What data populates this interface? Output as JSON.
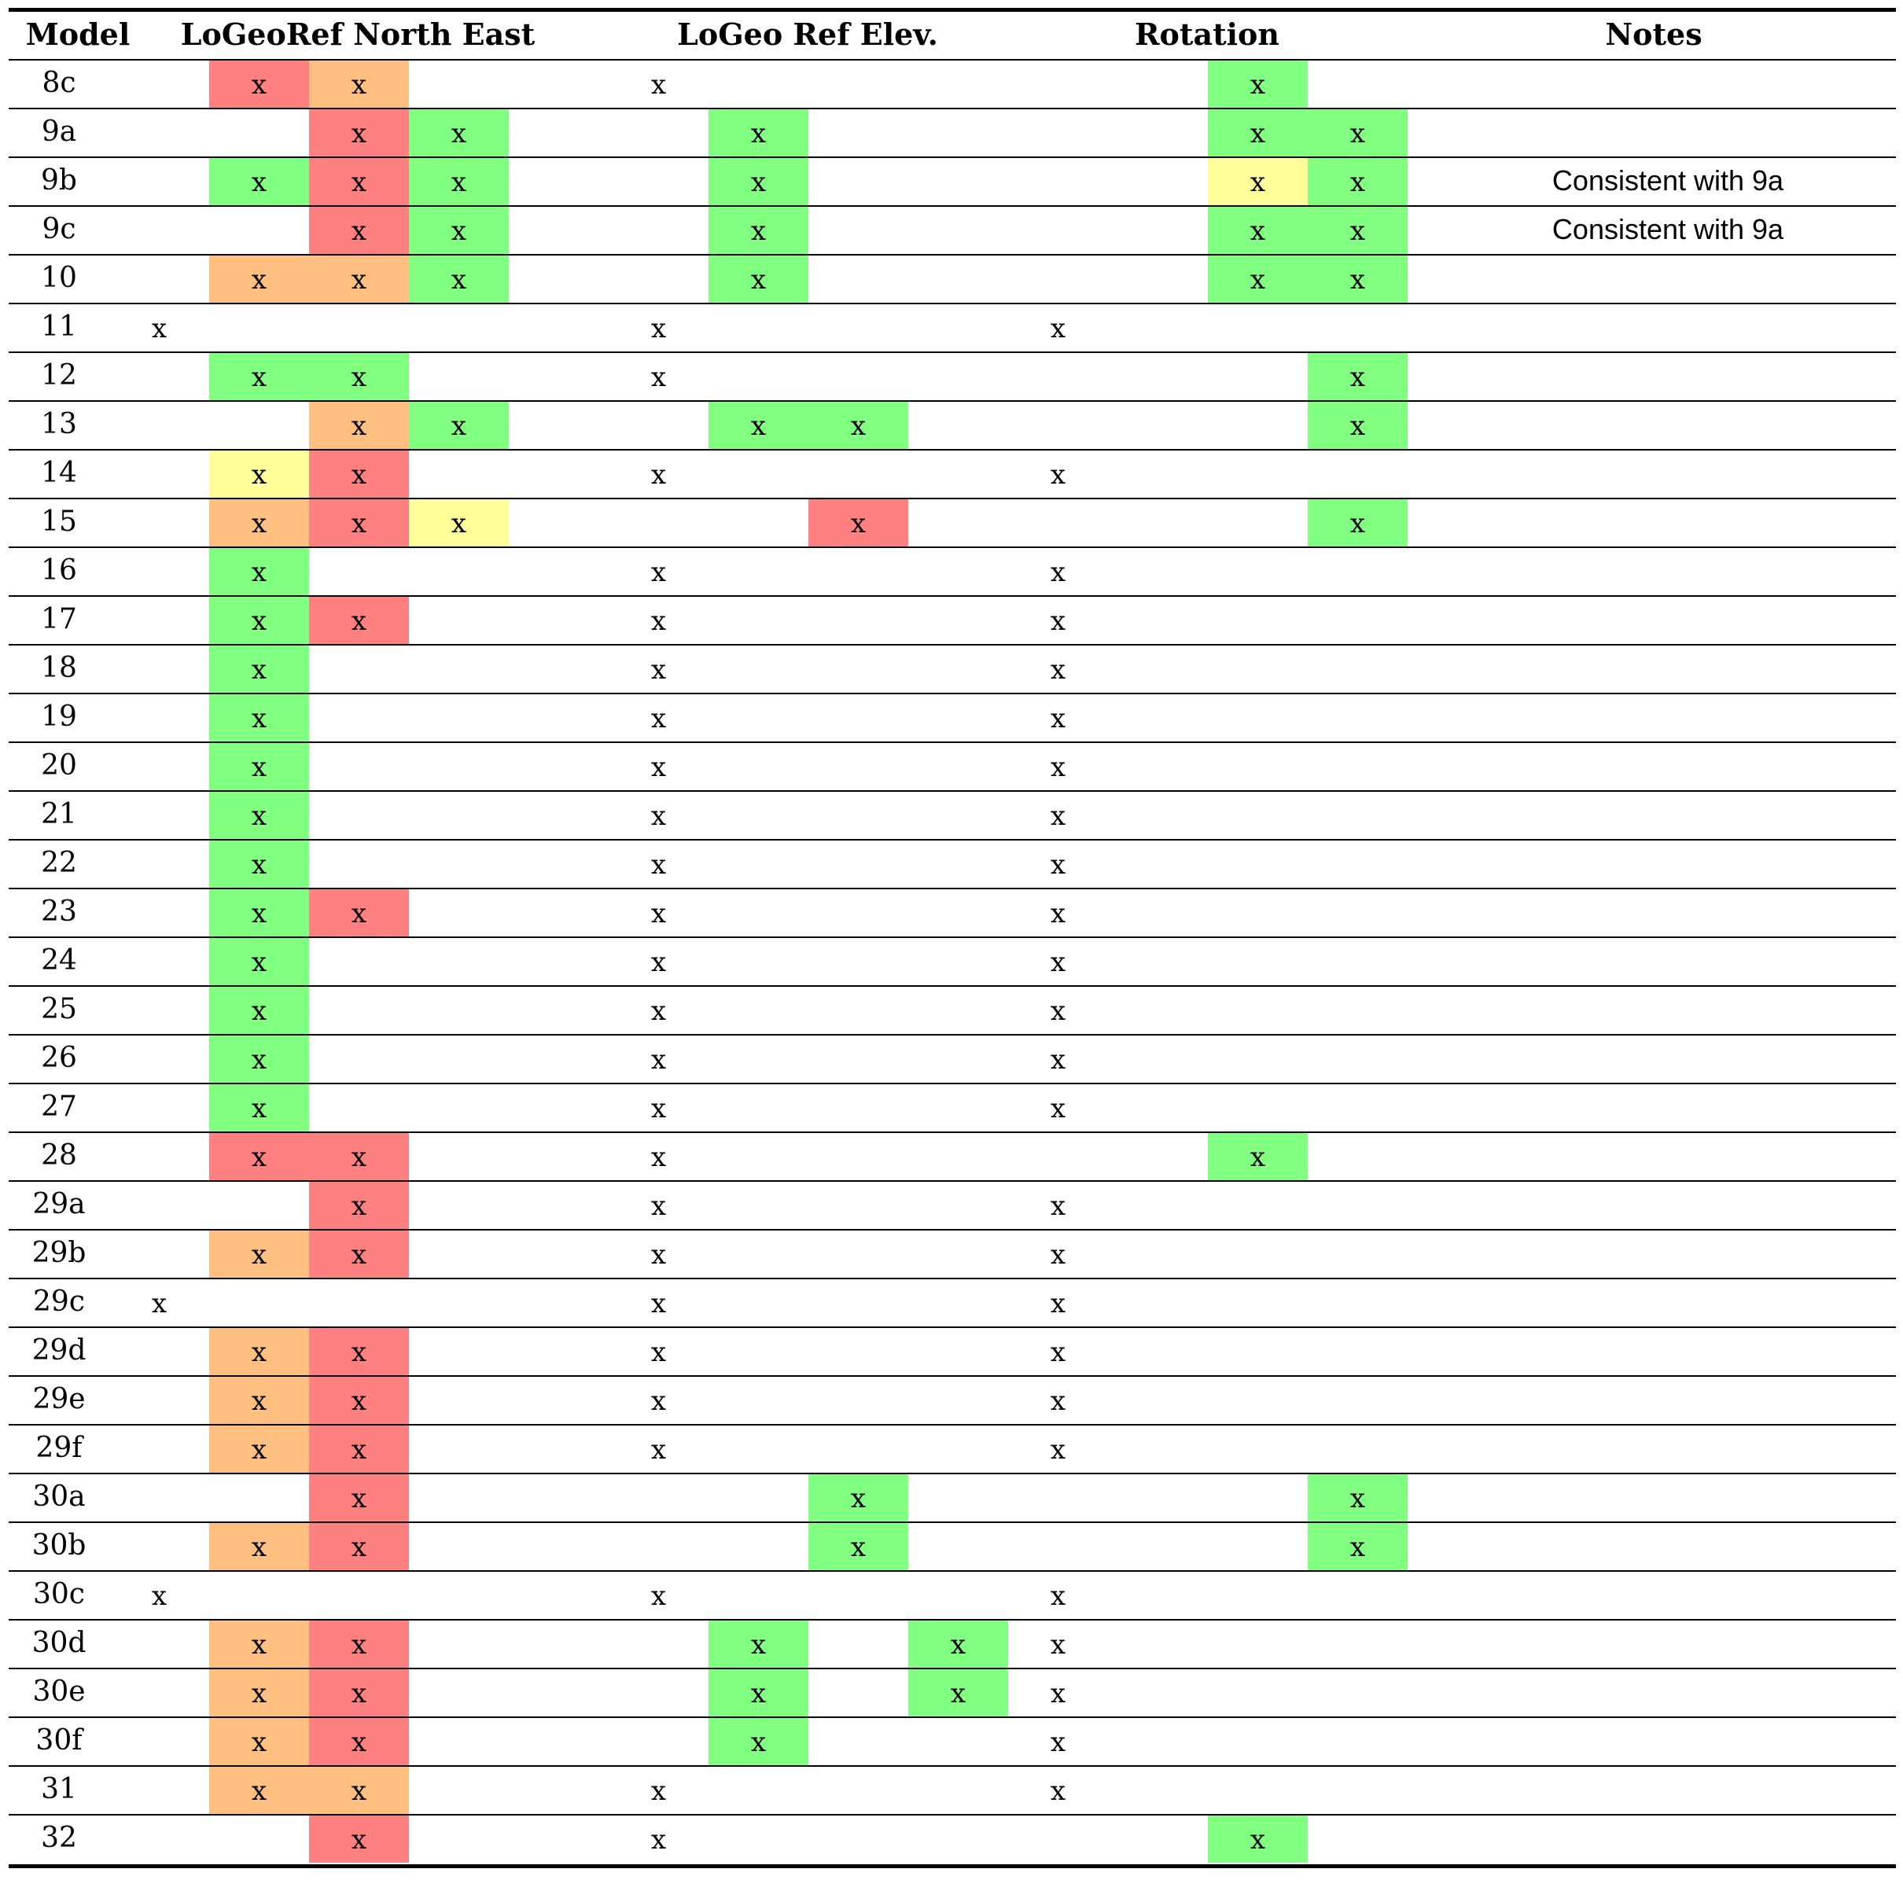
{
  "headers": {
    "model": "Model",
    "north_east": "LoGeoRef North East",
    "elevation": "LoGeo Ref Elev.",
    "rotation": "Rotation",
    "notes": "Notes"
  },
  "mark": "x",
  "colors": {
    "g": "#80ff80",
    "r": "#ff8080",
    "o": "#ffbf80",
    "y": "#ffff99"
  },
  "rows": [
    {
      "model": "8c",
      "notes": "",
      "cells": {
        "2": "r",
        "3": "o",
        "6": "n",
        "12": "g"
      }
    },
    {
      "model": "9a",
      "notes": "",
      "cells": {
        "3": "r",
        "4": "g",
        "7": "g",
        "12": "g",
        "13": "g"
      }
    },
    {
      "model": "9b",
      "notes": "Consistent with 9a",
      "cells": {
        "2": "g",
        "3": "r",
        "4": "g",
        "7": "g",
        "12": "y",
        "13": "g"
      }
    },
    {
      "model": "9c",
      "notes": "Consistent with 9a",
      "cells": {
        "3": "r",
        "4": "g",
        "7": "g",
        "12": "g",
        "13": "g"
      }
    },
    {
      "model": "10",
      "notes": "",
      "cells": {
        "2": "o",
        "3": "o",
        "4": "g",
        "7": "g",
        "12": "g",
        "13": "g"
      }
    },
    {
      "model": "11",
      "notes": "",
      "cells": {
        "1": "n",
        "6": "n",
        "10": "n"
      }
    },
    {
      "model": "12",
      "notes": "",
      "cells": {
        "2": "g",
        "3": "g",
        "6": "n",
        "13": "g"
      }
    },
    {
      "model": "13",
      "notes": "",
      "cells": {
        "3": "o",
        "4": "g",
        "7": "g",
        "8": "g",
        "13": "g"
      }
    },
    {
      "model": "14",
      "notes": "",
      "cells": {
        "2": "y",
        "3": "r",
        "6": "n",
        "10": "n"
      }
    },
    {
      "model": "15",
      "notes": "",
      "cells": {
        "2": "o",
        "3": "r",
        "4": "y",
        "8": "r",
        "13": "g"
      }
    },
    {
      "model": "16",
      "notes": "",
      "cells": {
        "2": "g",
        "6": "n",
        "10": "n"
      }
    },
    {
      "model": "17",
      "notes": "",
      "cells": {
        "2": "g",
        "3": "r",
        "6": "n",
        "10": "n"
      }
    },
    {
      "model": "18",
      "notes": "",
      "cells": {
        "2": "g",
        "6": "n",
        "10": "n"
      }
    },
    {
      "model": "19",
      "notes": "",
      "cells": {
        "2": "g",
        "6": "n",
        "10": "n"
      }
    },
    {
      "model": "20",
      "notes": "",
      "cells": {
        "2": "g",
        "6": "n",
        "10": "n"
      }
    },
    {
      "model": "21",
      "notes": "",
      "cells": {
        "2": "g",
        "6": "n",
        "10": "n"
      }
    },
    {
      "model": "22",
      "notes": "",
      "cells": {
        "2": "g",
        "6": "n",
        "10": "n"
      }
    },
    {
      "model": "23",
      "notes": "",
      "cells": {
        "2": "g",
        "3": "r",
        "6": "n",
        "10": "n"
      }
    },
    {
      "model": "24",
      "notes": "",
      "cells": {
        "2": "g",
        "6": "n",
        "10": "n"
      }
    },
    {
      "model": "25",
      "notes": "",
      "cells": {
        "2": "g",
        "6": "n",
        "10": "n"
      }
    },
    {
      "model": "26",
      "notes": "",
      "cells": {
        "2": "g",
        "6": "n",
        "10": "n"
      }
    },
    {
      "model": "27",
      "notes": "",
      "cells": {
        "2": "g",
        "6": "n",
        "10": "n"
      }
    },
    {
      "model": "28",
      "notes": "",
      "cells": {
        "2": "r",
        "3": "r",
        "6": "n",
        "12": "g"
      }
    },
    {
      "model": "29a",
      "notes": "",
      "cells": {
        "3": "r",
        "6": "n",
        "10": "n"
      }
    },
    {
      "model": "29b",
      "notes": "",
      "cells": {
        "2": "o",
        "3": "r",
        "6": "n",
        "10": "n"
      }
    },
    {
      "model": "29c",
      "notes": "",
      "cells": {
        "1": "n",
        "6": "n",
        "10": "n"
      }
    },
    {
      "model": "29d",
      "notes": "",
      "cells": {
        "2": "o",
        "3": "r",
        "6": "n",
        "10": "n"
      }
    },
    {
      "model": "29e",
      "notes": "",
      "cells": {
        "2": "o",
        "3": "r",
        "6": "n",
        "10": "n"
      }
    },
    {
      "model": "29f",
      "notes": "",
      "cells": {
        "2": "o",
        "3": "r",
        "6": "n",
        "10": "n"
      }
    },
    {
      "model": "30a",
      "notes": "",
      "cells": {
        "3": "r",
        "8": "g",
        "13": "g"
      }
    },
    {
      "model": "30b",
      "notes": "",
      "cells": {
        "2": "o",
        "3": "r",
        "8": "g",
        "13": "g"
      }
    },
    {
      "model": "30c",
      "notes": "",
      "cells": {
        "1": "n",
        "6": "n",
        "10": "n"
      }
    },
    {
      "model": "30d",
      "notes": "",
      "cells": {
        "2": "o",
        "3": "r",
        "7": "g",
        "9": "g",
        "10": "n"
      }
    },
    {
      "model": "30e",
      "notes": "",
      "cells": {
        "2": "o",
        "3": "r",
        "7": "g",
        "9": "g",
        "10": "n"
      }
    },
    {
      "model": "30f",
      "notes": "",
      "cells": {
        "2": "o",
        "3": "r",
        "7": "g",
        "10": "n"
      }
    },
    {
      "model": "31",
      "notes": "",
      "cells": {
        "2": "o",
        "3": "o",
        "6": "n",
        "10": "n"
      }
    },
    {
      "model": "32",
      "notes": "",
      "cells": {
        "3": "r",
        "6": "n",
        "12": "g"
      }
    }
  ]
}
